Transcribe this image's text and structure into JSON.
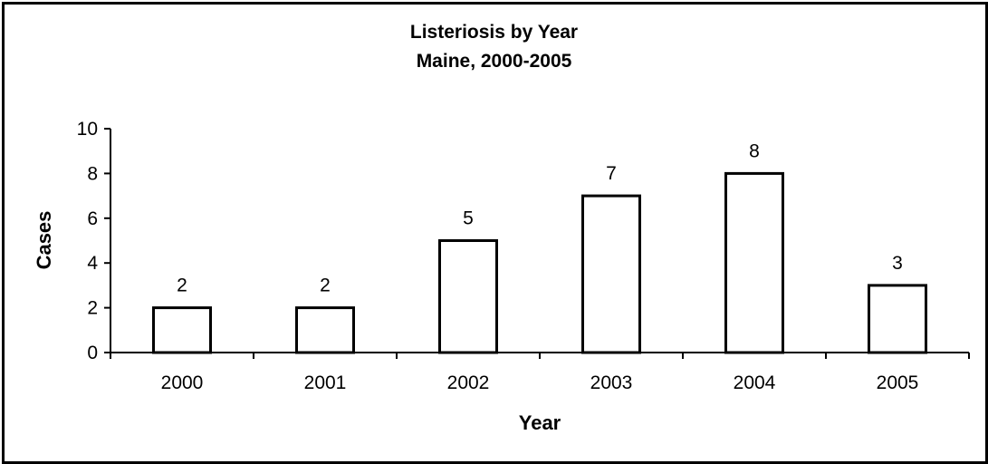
{
  "chart_data": {
    "type": "bar",
    "title": "Listeriosis by Year",
    "subtitle": "Maine, 2000-2005",
    "xlabel": "Year",
    "ylabel": "Cases",
    "categories": [
      "2000",
      "2001",
      "2002",
      "2003",
      "2004",
      "2005"
    ],
    "values": [
      2,
      2,
      5,
      7,
      8,
      3
    ],
    "data_labels": [
      "2",
      "2",
      "5",
      "7",
      "8",
      "3"
    ],
    "ylim": [
      0,
      10
    ],
    "yticks": [
      0,
      2,
      4,
      6,
      8,
      10
    ],
    "ytick_labels": [
      "0",
      "2",
      "4",
      "6",
      "8",
      "10"
    ],
    "grid": false,
    "legend": "none",
    "bar_fill": "#ffffff",
    "bar_stroke": "#000000"
  }
}
